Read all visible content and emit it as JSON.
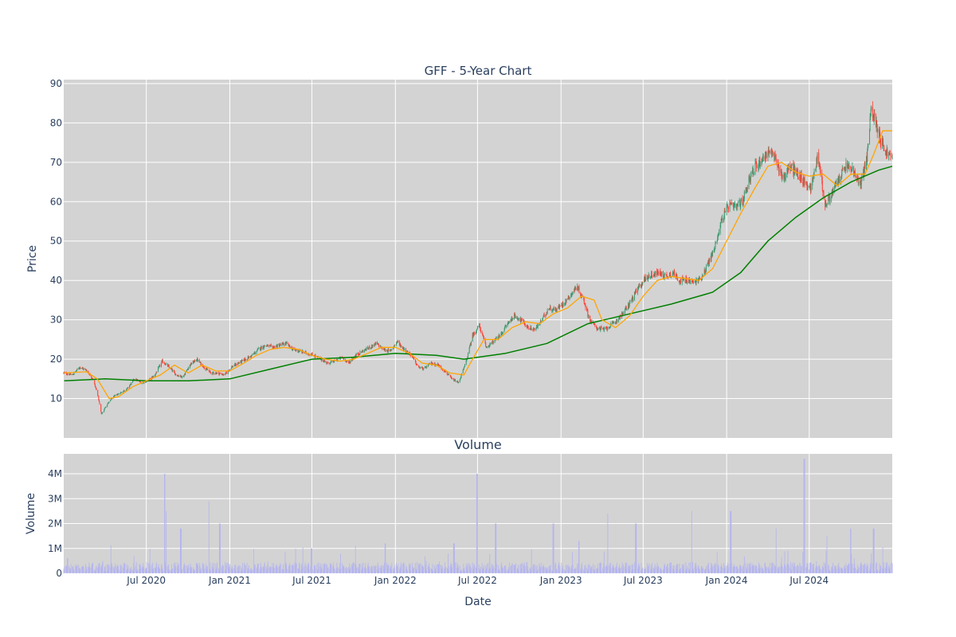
{
  "chart_data": [
    {
      "type": "candlestick",
      "title": "GFF - 5-Year Chart",
      "xlabel": "",
      "ylabel": "Price",
      "ylim": [
        0,
        91
      ],
      "xlim": [
        "2020-01-01",
        "2024-12-31"
      ],
      "yticks": [
        10,
        20,
        30,
        40,
        50,
        60,
        70,
        80,
        90
      ],
      "xticks": [
        {
          "date": "2020-07-01",
          "label": "Jul 2020"
        },
        {
          "date": "2021-01-01",
          "label": "Jan 2021"
        },
        {
          "date": "2021-07-01",
          "label": "Jul 2021"
        },
        {
          "date": "2022-01-01",
          "label": "Jan 2022"
        },
        {
          "date": "2022-07-01",
          "label": "Jul 2022"
        },
        {
          "date": "2023-01-01",
          "label": "Jan 2023"
        },
        {
          "date": "2023-07-01",
          "label": "Jul 2023"
        },
        {
          "date": "2024-01-01",
          "label": "Jan 2024"
        },
        {
          "date": "2024-07-01",
          "label": "Jul 2024"
        }
      ],
      "grid": true,
      "up_color": "#3d9970",
      "down_color": "#ff4136",
      "close_path": [
        [
          "2020-01-02",
          16.5
        ],
        [
          "2020-01-20",
          16.0
        ],
        [
          "2020-02-05",
          18.0
        ],
        [
          "2020-02-20",
          17.2
        ],
        [
          "2020-03-05",
          15.0
        ],
        [
          "2020-03-16",
          11.0
        ],
        [
          "2020-03-24",
          6.0
        ],
        [
          "2020-04-05",
          8.5
        ],
        [
          "2020-04-20",
          10.5
        ],
        [
          "2020-05-05",
          11.5
        ],
        [
          "2020-05-20",
          12.5
        ],
        [
          "2020-06-05",
          15.0
        ],
        [
          "2020-06-20",
          14.0
        ],
        [
          "2020-07-05",
          14.5
        ],
        [
          "2020-07-20",
          16.0
        ],
        [
          "2020-08-05",
          19.5
        ],
        [
          "2020-08-20",
          18.0
        ],
        [
          "2020-09-05",
          16.0
        ],
        [
          "2020-09-20",
          15.5
        ],
        [
          "2020-10-05",
          18.5
        ],
        [
          "2020-10-20",
          20.0
        ],
        [
          "2020-11-05",
          18.0
        ],
        [
          "2020-11-20",
          16.5
        ],
        [
          "2020-12-05",
          16.5
        ],
        [
          "2020-12-20",
          16.0
        ],
        [
          "2021-01-05",
          18.0
        ],
        [
          "2021-01-20",
          19.0
        ],
        [
          "2021-02-05",
          20.0
        ],
        [
          "2021-02-20",
          21.0
        ],
        [
          "2021-03-05",
          22.5
        ],
        [
          "2021-03-20",
          23.5
        ],
        [
          "2021-04-05",
          23.0
        ],
        [
          "2021-04-20",
          23.5
        ],
        [
          "2021-05-05",
          24.0
        ],
        [
          "2021-05-20",
          22.5
        ],
        [
          "2021-06-05",
          22.0
        ],
        [
          "2021-06-20",
          21.5
        ],
        [
          "2021-07-05",
          21.0
        ],
        [
          "2021-07-20",
          20.0
        ],
        [
          "2021-08-05",
          19.0
        ],
        [
          "2021-08-20",
          19.5
        ],
        [
          "2021-09-05",
          20.5
        ],
        [
          "2021-09-20",
          19.0
        ],
        [
          "2021-10-05",
          21.0
        ],
        [
          "2021-10-20",
          22.0
        ],
        [
          "2021-11-05",
          23.0
        ],
        [
          "2021-11-20",
          24.0
        ],
        [
          "2021-12-05",
          22.5
        ],
        [
          "2021-12-20",
          22.0
        ],
        [
          "2022-01-05",
          24.5
        ],
        [
          "2022-01-20",
          22.5
        ],
        [
          "2022-02-05",
          21.0
        ],
        [
          "2022-02-20",
          18.0
        ],
        [
          "2022-03-05",
          17.5
        ],
        [
          "2022-03-20",
          19.0
        ],
        [
          "2022-04-05",
          18.5
        ],
        [
          "2022-04-20",
          17.0
        ],
        [
          "2022-05-05",
          15.0
        ],
        [
          "2022-05-20",
          14.0
        ],
        [
          "2022-06-05",
          19.0
        ],
        [
          "2022-06-20",
          26.0
        ],
        [
          "2022-07-05",
          28.5
        ],
        [
          "2022-07-20",
          23.0
        ],
        [
          "2022-08-05",
          24.5
        ],
        [
          "2022-08-20",
          26.0
        ],
        [
          "2022-09-05",
          29.0
        ],
        [
          "2022-09-20",
          31.0
        ],
        [
          "2022-10-05",
          30.0
        ],
        [
          "2022-10-20",
          28.0
        ],
        [
          "2022-11-05",
          27.5
        ],
        [
          "2022-11-20",
          30.0
        ],
        [
          "2022-12-05",
          33.0
        ],
        [
          "2022-12-20",
          32.5
        ],
        [
          "2023-01-05",
          34.0
        ],
        [
          "2023-01-20",
          36.0
        ],
        [
          "2023-02-05",
          38.5
        ],
        [
          "2023-02-20",
          35.0
        ],
        [
          "2023-03-05",
          30.0
        ],
        [
          "2023-03-20",
          28.0
        ],
        [
          "2023-04-05",
          27.5
        ],
        [
          "2023-04-20",
          28.5
        ],
        [
          "2023-05-05",
          30.0
        ],
        [
          "2023-05-20",
          32.0
        ],
        [
          "2023-06-05",
          35.0
        ],
        [
          "2023-06-20",
          38.0
        ],
        [
          "2023-07-05",
          40.5
        ],
        [
          "2023-07-20",
          41.5
        ],
        [
          "2023-08-05",
          42.0
        ],
        [
          "2023-08-20",
          41.0
        ],
        [
          "2023-09-05",
          42.0
        ],
        [
          "2023-09-20",
          40.0
        ],
        [
          "2023-10-05",
          40.0
        ],
        [
          "2023-10-20",
          39.5
        ],
        [
          "2023-11-05",
          40.5
        ],
        [
          "2023-11-20",
          44.0
        ],
        [
          "2023-12-05",
          48.0
        ],
        [
          "2023-12-20",
          55.0
        ],
        [
          "2024-01-05",
          59.0
        ],
        [
          "2024-01-20",
          58.5
        ],
        [
          "2024-02-05",
          60.0
        ],
        [
          "2024-02-20",
          66.0
        ],
        [
          "2024-03-05",
          69.0
        ],
        [
          "2024-03-20",
          71.0
        ],
        [
          "2024-04-05",
          73.0
        ],
        [
          "2024-04-20",
          70.0
        ],
        [
          "2024-05-05",
          66.0
        ],
        [
          "2024-05-20",
          69.0
        ],
        [
          "2024-06-05",
          67.0
        ],
        [
          "2024-06-20",
          65.0
        ],
        [
          "2024-07-05",
          63.5
        ],
        [
          "2024-07-20",
          72.0
        ],
        [
          "2024-08-05",
          59.0
        ],
        [
          "2024-08-20",
          62.0
        ],
        [
          "2024-09-05",
          66.0
        ],
        [
          "2024-09-20",
          69.0
        ],
        [
          "2024-10-05",
          68.0
        ],
        [
          "2024-10-20",
          64.0
        ],
        [
          "2024-11-05",
          71.0
        ],
        [
          "2024-11-15",
          84.0
        ],
        [
          "2024-12-05",
          76.0
        ],
        [
          "2024-12-15",
          73.0
        ],
        [
          "2024-12-30",
          71.0
        ]
      ],
      "ma_short": {
        "color": "#ffa500",
        "points": [
          [
            "2020-01-02",
            16.5
          ],
          [
            "2020-02-20",
            16.8
          ],
          [
            "2020-03-15",
            15.0
          ],
          [
            "2020-04-10",
            10.0
          ],
          [
            "2020-05-01",
            10.5
          ],
          [
            "2020-06-01",
            13.0
          ],
          [
            "2020-07-01",
            14.5
          ],
          [
            "2020-08-01",
            16.0
          ],
          [
            "2020-09-01",
            18.5
          ],
          [
            "2020-10-01",
            16.5
          ],
          [
            "2020-11-01",
            18.5
          ],
          [
            "2020-12-01",
            17.0
          ],
          [
            "2021-01-01",
            17.0
          ],
          [
            "2021-02-01",
            19.0
          ],
          [
            "2021-03-01",
            21.0
          ],
          [
            "2021-04-01",
            22.5
          ],
          [
            "2021-05-01",
            23.0
          ],
          [
            "2021-06-01",
            22.5
          ],
          [
            "2021-07-01",
            21.0
          ],
          [
            "2021-08-01",
            20.0
          ],
          [
            "2021-09-01",
            19.5
          ],
          [
            "2021-10-01",
            20.0
          ],
          [
            "2021-11-01",
            21.5
          ],
          [
            "2021-12-01",
            23.0
          ],
          [
            "2022-01-01",
            23.0
          ],
          [
            "2022-02-01",
            21.5
          ],
          [
            "2022-03-01",
            19.0
          ],
          [
            "2022-04-01",
            18.5
          ],
          [
            "2022-05-01",
            16.5
          ],
          [
            "2022-06-01",
            16.0
          ],
          [
            "2022-06-20",
            20.0
          ],
          [
            "2022-07-15",
            25.0
          ],
          [
            "2022-08-15",
            25.0
          ],
          [
            "2022-09-15",
            28.0
          ],
          [
            "2022-10-15",
            29.5
          ],
          [
            "2022-11-15",
            29.0
          ],
          [
            "2022-12-15",
            31.5
          ],
          [
            "2023-01-15",
            33.0
          ],
          [
            "2023-02-15",
            36.0
          ],
          [
            "2023-03-15",
            35.0
          ],
          [
            "2023-04-01",
            30.0
          ],
          [
            "2023-05-01",
            28.0
          ],
          [
            "2023-06-01",
            31.0
          ],
          [
            "2023-07-01",
            36.0
          ],
          [
            "2023-08-01",
            40.0
          ],
          [
            "2023-09-01",
            41.0
          ],
          [
            "2023-10-01",
            40.5
          ],
          [
            "2023-11-01",
            40.0
          ],
          [
            "2023-12-01",
            43.0
          ],
          [
            "2024-01-01",
            50.0
          ],
          [
            "2024-02-01",
            57.0
          ],
          [
            "2024-03-01",
            63.0
          ],
          [
            "2024-04-01",
            69.0
          ],
          [
            "2024-05-01",
            70.0
          ],
          [
            "2024-06-01",
            67.5
          ],
          [
            "2024-07-01",
            66.5
          ],
          [
            "2024-08-01",
            67.0
          ],
          [
            "2024-09-01",
            64.0
          ],
          [
            "2024-10-01",
            67.0
          ],
          [
            "2024-11-01",
            67.0
          ],
          [
            "2024-11-20",
            72.0
          ],
          [
            "2024-12-10",
            78.0
          ],
          [
            "2024-12-31",
            78.0
          ]
        ]
      },
      "ma_long": {
        "color": "#008000",
        "points": [
          [
            "2020-01-02",
            14.5
          ],
          [
            "2020-04-01",
            15.0
          ],
          [
            "2020-07-01",
            14.5
          ],
          [
            "2020-10-01",
            14.5
          ],
          [
            "2021-01-01",
            15.0
          ],
          [
            "2021-04-01",
            17.5
          ],
          [
            "2021-07-01",
            20.0
          ],
          [
            "2021-10-01",
            20.5
          ],
          [
            "2022-01-01",
            21.5
          ],
          [
            "2022-04-01",
            21.0
          ],
          [
            "2022-06-01",
            20.0
          ],
          [
            "2022-09-01",
            21.5
          ],
          [
            "2022-12-01",
            24.0
          ],
          [
            "2023-03-01",
            29.0
          ],
          [
            "2023-06-01",
            31.5
          ],
          [
            "2023-09-01",
            34.0
          ],
          [
            "2023-12-01",
            37.0
          ],
          [
            "2024-02-01",
            42.0
          ],
          [
            "2024-04-01",
            50.0
          ],
          [
            "2024-06-01",
            56.0
          ],
          [
            "2024-08-01",
            61.0
          ],
          [
            "2024-10-01",
            65.0
          ],
          [
            "2024-12-01",
            68.0
          ],
          [
            "2024-12-31",
            69.0
          ]
        ]
      }
    },
    {
      "type": "bar",
      "title": "Volume",
      "xlabel": "Date",
      "ylabel": "Volume",
      "ylim": [
        0,
        4800000
      ],
      "yticks": [
        {
          "value": 0,
          "label": "0"
        },
        {
          "value": 1000000,
          "label": "1M"
        },
        {
          "value": 2000000,
          "label": "2M"
        },
        {
          "value": 3000000,
          "label": "3M"
        },
        {
          "value": 4000000,
          "label": "4M"
        }
      ],
      "bar_color": "#b4b4f0",
      "base_volume": 300000,
      "spikes": [
        [
          "2020-01-10",
          600000
        ],
        [
          "2020-08-10",
          4000000
        ],
        [
          "2020-08-15",
          2500000
        ],
        [
          "2020-09-15",
          1800000
        ],
        [
          "2020-11-15",
          2900000
        ],
        [
          "2020-12-10",
          2000000
        ],
        [
          "2021-06-30",
          1000000
        ],
        [
          "2021-12-10",
          1200000
        ],
        [
          "2022-05-10",
          1200000
        ],
        [
          "2022-06-30",
          4000000
        ],
        [
          "2022-08-10",
          2000000
        ],
        [
          "2022-12-15",
          2000000
        ],
        [
          "2023-02-10",
          1300000
        ],
        [
          "2023-04-15",
          2400000
        ],
        [
          "2023-06-15",
          2000000
        ],
        [
          "2023-10-15",
          2500000
        ],
        [
          "2024-01-10",
          2500000
        ],
        [
          "2024-04-20",
          1800000
        ],
        [
          "2024-06-20",
          4600000
        ],
        [
          "2024-08-10",
          1500000
        ],
        [
          "2024-09-30",
          1800000
        ],
        [
          "2024-11-20",
          1800000
        ]
      ]
    }
  ]
}
